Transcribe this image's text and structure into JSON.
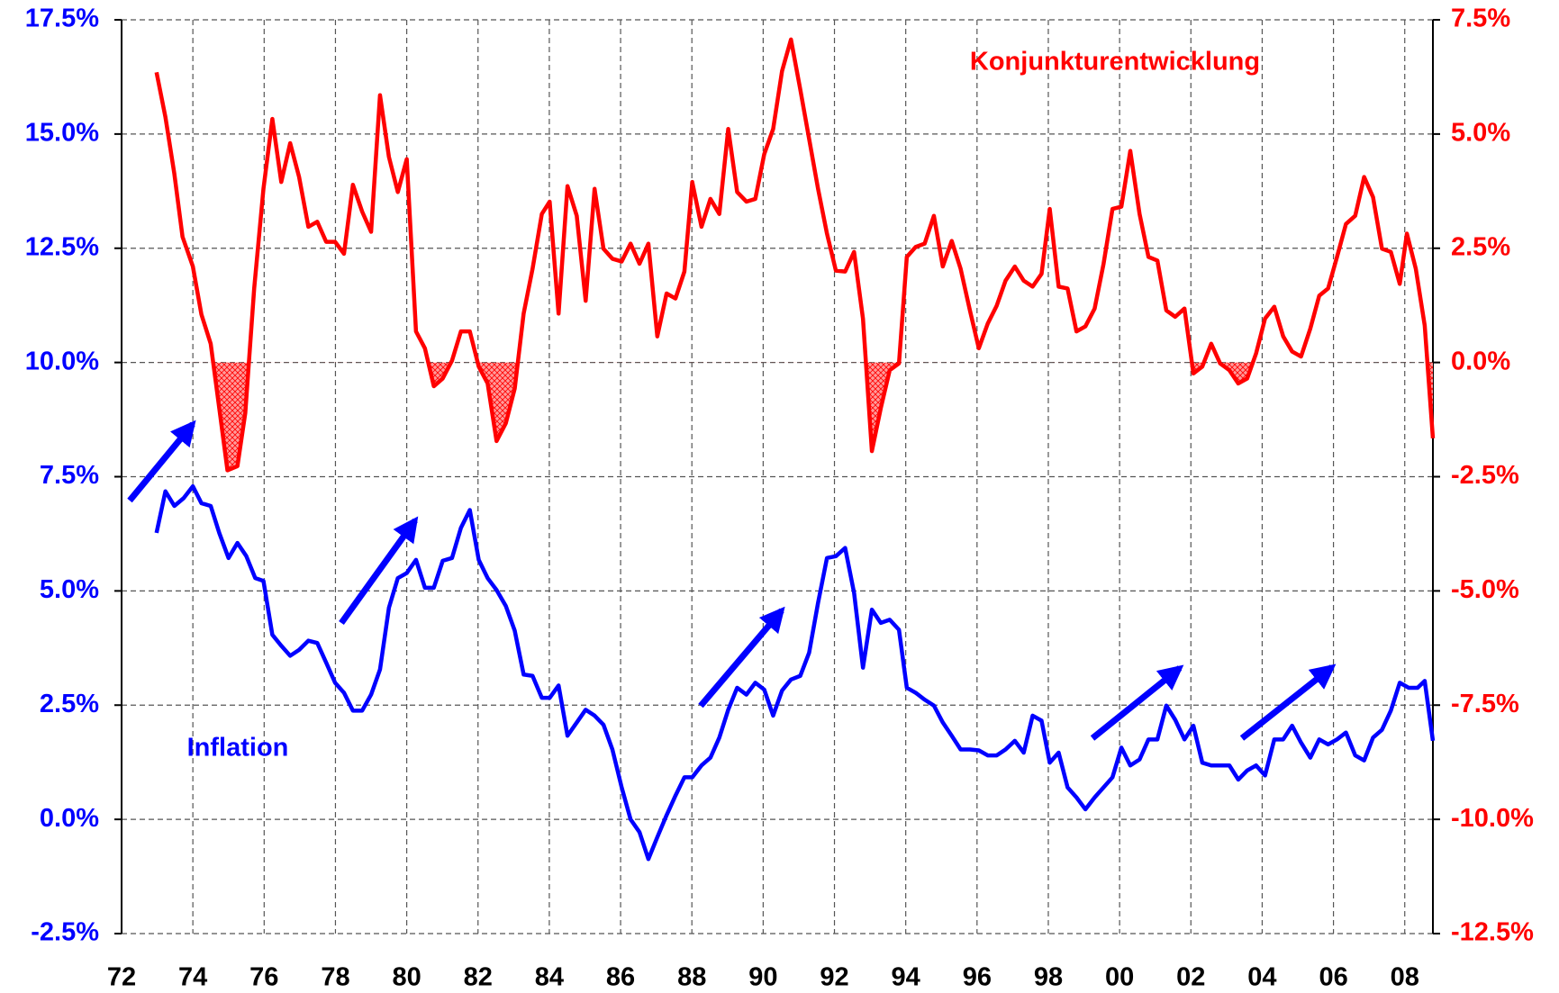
{
  "chart_data": {
    "type": "line",
    "xlim": [
      1972,
      2008.79
    ],
    "xticks": [
      {
        "value": 1972,
        "label": "72"
      },
      {
        "value": 1974,
        "label": "74"
      },
      {
        "value": 1976,
        "label": "76"
      },
      {
        "value": 1978,
        "label": "78"
      },
      {
        "value": 1980,
        "label": "80"
      },
      {
        "value": 1982,
        "label": "82"
      },
      {
        "value": 1984,
        "label": "84"
      },
      {
        "value": 1986,
        "label": "86"
      },
      {
        "value": 1988,
        "label": "88"
      },
      {
        "value": 1990,
        "label": "90"
      },
      {
        "value": 1992,
        "label": "92"
      },
      {
        "value": 1994,
        "label": "94"
      },
      {
        "value": 1996,
        "label": "96"
      },
      {
        "value": 1998,
        "label": "98"
      },
      {
        "value": 2000,
        "label": "00"
      },
      {
        "value": 2002,
        "label": "02"
      },
      {
        "value": 2004,
        "label": "04"
      },
      {
        "value": 2006,
        "label": "06"
      },
      {
        "value": 2008,
        "label": "08"
      }
    ],
    "ylim": [
      -2.5,
      17.5
    ],
    "yticks": [
      {
        "value": -2.5,
        "label": "-2.5%"
      },
      {
        "value": 0,
        "label": "0.0%"
      },
      {
        "value": 2.5,
        "label": "2.5%"
      },
      {
        "value": 5,
        "label": "5.0%"
      },
      {
        "value": 7.5,
        "label": "7.5%"
      },
      {
        "value": 10,
        "label": "10.0%"
      },
      {
        "value": 12.5,
        "label": "12.5%"
      },
      {
        "value": 15,
        "label": "15.0%"
      },
      {
        "value": 17.5,
        "label": "17.5%"
      }
    ],
    "y2lim": [
      -12.5,
      7.5
    ],
    "y2ticks": [
      {
        "value": -12.5,
        "label": "-12.5%"
      },
      {
        "value": -10,
        "label": "-10.0%"
      },
      {
        "value": -7.5,
        "label": "-7.5%"
      },
      {
        "value": -5,
        "label": "-5.0%"
      },
      {
        "value": -2.5,
        "label": "-2.5%"
      },
      {
        "value": 0,
        "label": "0.0%"
      },
      {
        "value": 2.5,
        "label": "2.5%"
      },
      {
        "value": 5,
        "label": "5.0%"
      },
      {
        "value": 7.5,
        "label": "7.5%"
      }
    ],
    "grid": true,
    "series": [
      {
        "name": "Konjunkturentwicklung",
        "color": "#ff0000",
        "axis": "y2",
        "shade_below_zero": true,
        "x": [
          1972.98,
          1973.23,
          1973.48,
          1973.71,
          1974.0,
          1974.24,
          1974.5,
          1974.74,
          1974.97,
          1975.25,
          1975.47,
          1975.72,
          1975.98,
          1976.23,
          1976.48,
          1976.73,
          1976.98,
          1977.24,
          1977.49,
          1977.74,
          1977.99,
          1978.24,
          1978.49,
          1978.75,
          1979.0,
          1979.25,
          1979.5,
          1979.75,
          1980.0,
          1980.26,
          1980.51,
          1980.76,
          1981.01,
          1981.27,
          1981.52,
          1981.77,
          1982.02,
          1982.27,
          1982.52,
          1982.78,
          1983.03,
          1983.28,
          1983.53,
          1983.79,
          1984.01,
          1984.26,
          1984.51,
          1984.77,
          1985.02,
          1985.27,
          1985.52,
          1985.77,
          1986.03,
          1986.28,
          1986.53,
          1986.78,
          1987.03,
          1987.29,
          1987.54,
          1987.79,
          1988.01,
          1988.27,
          1988.52,
          1988.77,
          1989.02,
          1989.27,
          1989.53,
          1989.78,
          1990.03,
          1990.28,
          1990.53,
          1990.78,
          1991.04,
          1991.29,
          1991.54,
          1991.79,
          1992.04,
          1992.3,
          1992.55,
          1992.8,
          1993.05,
          1993.3,
          1993.55,
          1993.81,
          1994.03,
          1994.28,
          1994.53,
          1994.79,
          1995.04,
          1995.29,
          1995.54,
          1995.8,
          1996.05,
          1996.3,
          1996.55,
          1996.8,
          1997.06,
          1997.31,
          1997.56,
          1997.81,
          1998.04,
          1998.29,
          1998.54,
          1998.79,
          1999.04,
          1999.3,
          1999.55,
          1999.8,
          2000.05,
          2000.3,
          2000.56,
          2000.81,
          2001.06,
          2001.31,
          2001.56,
          2001.82,
          2002.07,
          2002.32,
          2002.57,
          2002.82,
          2003.08,
          2003.33,
          2003.58,
          2003.83,
          2004.08,
          2004.34,
          2004.59,
          2004.84,
          2005.09,
          2005.35,
          2005.6,
          2005.85,
          2006.1,
          2006.35,
          2006.61,
          2006.86,
          2007.11,
          2007.36,
          2007.61,
          2007.86,
          2008.06,
          2008.31,
          2008.56,
          2008.79
        ],
        "values": [
          6.35,
          5.37,
          4.13,
          2.75,
          2.1,
          1.05,
          0.41,
          -1.0,
          -2.36,
          -2.27,
          -1.11,
          1.62,
          3.8,
          5.33,
          3.95,
          4.8,
          4.06,
          2.97,
          3.08,
          2.64,
          2.64,
          2.38,
          3.89,
          3.3,
          2.86,
          5.85,
          4.5,
          3.73,
          4.45,
          0.68,
          0.31,
          -0.52,
          -0.35,
          0.04,
          0.68,
          0.68,
          -0.09,
          -0.46,
          -1.72,
          -1.33,
          -0.57,
          1.07,
          2.05,
          3.25,
          3.52,
          1.07,
          3.86,
          3.21,
          1.35,
          3.8,
          2.49,
          2.27,
          2.21,
          2.6,
          2.16,
          2.6,
          0.57,
          1.51,
          1.4,
          1.99,
          3.95,
          2.97,
          3.58,
          3.25,
          5.11,
          3.73,
          3.52,
          3.58,
          4.56,
          5.11,
          6.38,
          7.07,
          5.98,
          4.89,
          3.8,
          2.82,
          2.01,
          1.99,
          2.42,
          0.96,
          -1.94,
          -1.0,
          -0.17,
          -0.02,
          2.31,
          2.53,
          2.6,
          3.21,
          2.1,
          2.66,
          2.05,
          1.14,
          0.31,
          0.85,
          1.24,
          1.79,
          2.1,
          1.79,
          1.66,
          1.94,
          3.36,
          1.66,
          1.62,
          0.68,
          0.79,
          1.18,
          2.16,
          3.36,
          3.41,
          4.63,
          3.25,
          2.31,
          2.23,
          1.14,
          1.0,
          1.18,
          -0.24,
          -0.09,
          0.41,
          -0.02,
          -0.17,
          -0.46,
          -0.35,
          0.2,
          0.96,
          1.22,
          0.57,
          0.24,
          0.13,
          0.74,
          1.46,
          1.62,
          2.31,
          3.03,
          3.21,
          4.06,
          3.62,
          2.49,
          2.42,
          1.72,
          2.82,
          2.05,
          0.81,
          -1.66
        ]
      },
      {
        "name": "Inflation",
        "color": "#0000ff",
        "axis": "y",
        "x": [
          1972.98,
          1973.23,
          1973.48,
          1973.74,
          1974.0,
          1974.24,
          1974.5,
          1974.74,
          1975.0,
          1975.25,
          1975.5,
          1975.75,
          1975.98,
          1976.23,
          1976.48,
          1976.73,
          1976.98,
          1977.24,
          1977.49,
          1977.74,
          1977.99,
          1978.24,
          1978.49,
          1978.75,
          1979.0,
          1979.25,
          1979.5,
          1979.75,
          1980.0,
          1980.26,
          1980.51,
          1980.76,
          1981.01,
          1981.27,
          1981.52,
          1981.77,
          1982.02,
          1982.27,
          1982.52,
          1982.78,
          1983.03,
          1983.28,
          1983.53,
          1983.79,
          1984.01,
          1984.26,
          1984.51,
          1984.77,
          1985.02,
          1985.27,
          1985.52,
          1985.77,
          1986.03,
          1986.28,
          1986.53,
          1986.78,
          1987.03,
          1987.29,
          1987.54,
          1987.79,
          1988.01,
          1988.27,
          1988.52,
          1988.77,
          1989.02,
          1989.27,
          1989.53,
          1989.78,
          1990.03,
          1990.28,
          1990.53,
          1990.78,
          1991.04,
          1991.29,
          1991.54,
          1991.79,
          1992.04,
          1992.3,
          1992.55,
          1992.8,
          1993.05,
          1993.3,
          1993.55,
          1993.81,
          1994.03,
          1994.28,
          1994.53,
          1994.79,
          1995.04,
          1995.29,
          1995.54,
          1995.8,
          1996.05,
          1996.3,
          1996.55,
          1996.8,
          1997.06,
          1997.31,
          1997.56,
          1997.81,
          1998.04,
          1998.29,
          1998.54,
          1998.79,
          1999.04,
          1999.3,
          1999.55,
          1999.8,
          2000.05,
          2000.3,
          2000.56,
          2000.81,
          2001.06,
          2001.31,
          2001.56,
          2001.82,
          2002.07,
          2002.32,
          2002.57,
          2002.82,
          2003.08,
          2003.33,
          2003.58,
          2003.83,
          2004.08,
          2004.34,
          2004.59,
          2004.84,
          2005.09,
          2005.35,
          2005.6,
          2005.85,
          2006.1,
          2006.35,
          2006.61,
          2006.86,
          2007.11,
          2007.36,
          2007.61,
          2007.86,
          2008.11,
          2008.36,
          2008.56,
          2008.79
        ],
        "values": [
          6.27,
          7.18,
          6.86,
          7.03,
          7.29,
          6.92,
          6.86,
          6.27,
          5.72,
          6.05,
          5.76,
          5.28,
          5.22,
          4.04,
          3.8,
          3.58,
          3.71,
          3.91,
          3.86,
          3.43,
          2.99,
          2.77,
          2.38,
          2.38,
          2.73,
          3.28,
          4.63,
          5.28,
          5.39,
          5.68,
          5.07,
          5.07,
          5.66,
          5.72,
          6.38,
          6.77,
          5.68,
          5.28,
          5.02,
          4.67,
          4.13,
          3.17,
          3.14,
          2.66,
          2.66,
          2.93,
          1.83,
          2.12,
          2.4,
          2.27,
          2.07,
          1.53,
          0.7,
          0.0,
          -0.28,
          -0.87,
          -0.39,
          0.09,
          0.52,
          0.92,
          0.92,
          1.18,
          1.35,
          1.79,
          2.4,
          2.88,
          2.73,
          2.99,
          2.84,
          2.27,
          2.82,
          3.06,
          3.14,
          3.65,
          4.74,
          5.72,
          5.76,
          5.94,
          4.96,
          3.32,
          4.59,
          4.3,
          4.37,
          4.15,
          2.88,
          2.77,
          2.62,
          2.49,
          2.12,
          1.83,
          1.53,
          1.53,
          1.51,
          1.4,
          1.4,
          1.53,
          1.72,
          1.46,
          2.27,
          2.16,
          1.24,
          1.46,
          0.7,
          0.48,
          0.22,
          0.48,
          0.7,
          0.92,
          1.57,
          1.18,
          1.31,
          1.75,
          1.75,
          2.49,
          2.18,
          1.75,
          2.05,
          1.24,
          1.18,
          1.18,
          1.18,
          0.87,
          1.07,
          1.18,
          0.96,
          1.75,
          1.75,
          2.05,
          1.68,
          1.35,
          1.75,
          1.64,
          1.75,
          1.9,
          1.4,
          1.29,
          1.79,
          1.96,
          2.38,
          2.99,
          2.88,
          2.88,
          3.03,
          1.72
        ]
      }
    ]
  }
}
